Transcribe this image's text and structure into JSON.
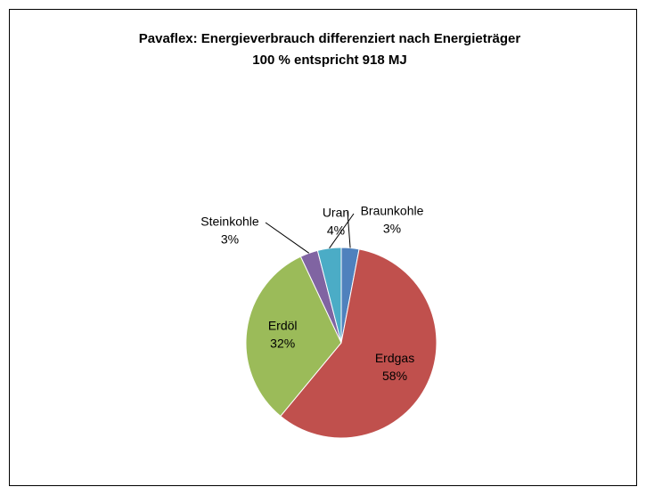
{
  "chart_data": {
    "type": "pie",
    "title": "Pavaflex: Energieverbrauch differenziert nach Energieträger",
    "subtitle": "100 % entspricht 918 MJ",
    "categories": [
      "Braunkohle",
      "Erdgas",
      "Erdöl",
      "Steinkohle",
      "Uran"
    ],
    "values": [
      3,
      58,
      32,
      3,
      4
    ],
    "value_labels": [
      "3%",
      "58%",
      "32%",
      "3%",
      "4%"
    ],
    "colors": [
      "#4f81bd",
      "#c0504d",
      "#9bbb59",
      "#8064a2",
      "#4bacc6"
    ]
  }
}
